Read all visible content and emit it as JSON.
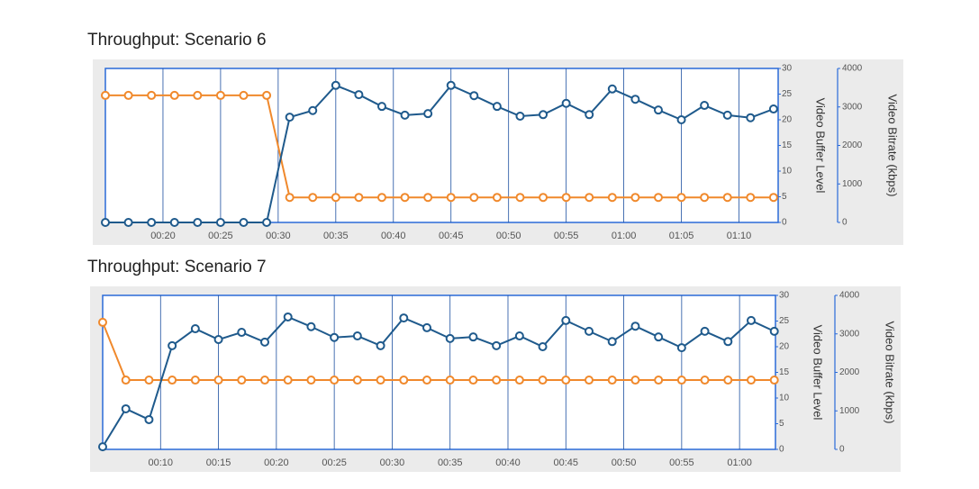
{
  "chart_data": [
    {
      "type": "line",
      "title": "Throughput: Scenario 6",
      "x": [
        15,
        17,
        19,
        21,
        23,
        25,
        27,
        29,
        31,
        33,
        35,
        37,
        39,
        41,
        43,
        45,
        47,
        49,
        51,
        53,
        55,
        57,
        59,
        61,
        63,
        65,
        67,
        69,
        71,
        73
      ],
      "xlim": [
        15,
        73.4
      ],
      "xticks": [
        {
          "value": 20,
          "label": "00:20"
        },
        {
          "value": 25,
          "label": "00:25"
        },
        {
          "value": 30,
          "label": "00:30"
        },
        {
          "value": 35,
          "label": "00:35"
        },
        {
          "value": 40,
          "label": "00:40"
        },
        {
          "value": 45,
          "label": "00:45"
        },
        {
          "value": 50,
          "label": "00:50"
        },
        {
          "value": 55,
          "label": "00:55"
        },
        {
          "value": 60,
          "label": "01:00"
        },
        {
          "value": 65,
          "label": "01:05"
        },
        {
          "value": 70,
          "label": "01:10"
        }
      ],
      "ylabel": "Video Buffer Level",
      "ylim": [
        0,
        30
      ],
      "yticks": [
        0,
        5,
        10,
        15,
        20,
        25,
        30
      ],
      "y2label": "Video Bitrate (kbps)",
      "y2lim": [
        0,
        4000
      ],
      "y2ticks": [
        0,
        1000,
        2000,
        3000,
        4000
      ],
      "grid": true,
      "series": [
        {
          "color": "#f0892c",
          "axis": "y2",
          "values": [
            3300,
            3300,
            3300,
            3300,
            3300,
            3300,
            3300,
            3300,
            650,
            650,
            650,
            650,
            650,
            650,
            650,
            650,
            650,
            650,
            650,
            650,
            650,
            650,
            650,
            650,
            650,
            650,
            650,
            650,
            650,
            650
          ]
        },
        {
          "color": "#1f5a8c",
          "axis": "y",
          "values": [
            0,
            0,
            0,
            0,
            0,
            0,
            0,
            0,
            20.5,
            21.8,
            26.7,
            24.9,
            22.6,
            20.9,
            21.2,
            26.7,
            24.7,
            22.6,
            20.7,
            21,
            23.2,
            21,
            26,
            24,
            21.9,
            20,
            22.8,
            20.9,
            20.4,
            22.1
          ]
        }
      ]
    },
    {
      "type": "line",
      "title": "Throughput: Scenario 7",
      "x": [
        5,
        7,
        9,
        11,
        13,
        15,
        17,
        19,
        21,
        23,
        25,
        27,
        29,
        31,
        33,
        35,
        37,
        39,
        41,
        43,
        45,
        47,
        49,
        51,
        53,
        55,
        57,
        59,
        61,
        63
      ],
      "xlim": [
        5,
        63.1
      ],
      "xticks": [
        {
          "value": 10,
          "label": "00:10"
        },
        {
          "value": 15,
          "label": "00:15"
        },
        {
          "value": 20,
          "label": "00:20"
        },
        {
          "value": 25,
          "label": "00:25"
        },
        {
          "value": 30,
          "label": "00:30"
        },
        {
          "value": 35,
          "label": "00:35"
        },
        {
          "value": 40,
          "label": "00:40"
        },
        {
          "value": 45,
          "label": "00:45"
        },
        {
          "value": 50,
          "label": "00:50"
        },
        {
          "value": 55,
          "label": "00:55"
        },
        {
          "value": 60,
          "label": "01:00"
        }
      ],
      "ylabel": "Video Buffer Level",
      "ylim": [
        0,
        30
      ],
      "yticks": [
        0,
        5,
        10,
        15,
        20,
        25,
        30
      ],
      "y2label": "Video Bitrate (kbps)",
      "y2lim": [
        0,
        4000
      ],
      "y2ticks": [
        0,
        1000,
        2000,
        3000,
        4000
      ],
      "grid": true,
      "series": [
        {
          "color": "#f0892c",
          "axis": "y2",
          "values": [
            3300,
            1800,
            1800,
            1800,
            1800,
            1800,
            1800,
            1800,
            1800,
            1800,
            1800,
            1800,
            1800,
            1800,
            1800,
            1800,
            1800,
            1800,
            1800,
            1800,
            1800,
            1800,
            1800,
            1800,
            1800,
            1800,
            1800,
            1800,
            1800,
            1800
          ]
        },
        {
          "color": "#1f5a8c",
          "axis": "y",
          "values": [
            0.5,
            7.9,
            5.8,
            20.2,
            23.5,
            21.4,
            22.8,
            20.9,
            25.8,
            23.9,
            21.8,
            22.1,
            20.2,
            25.6,
            23.7,
            21.6,
            21.9,
            20.2,
            22.1,
            20,
            25.1,
            23,
            21,
            24,
            21.9,
            19.8,
            23,
            21,
            25.1,
            23
          ]
        }
      ]
    }
  ]
}
